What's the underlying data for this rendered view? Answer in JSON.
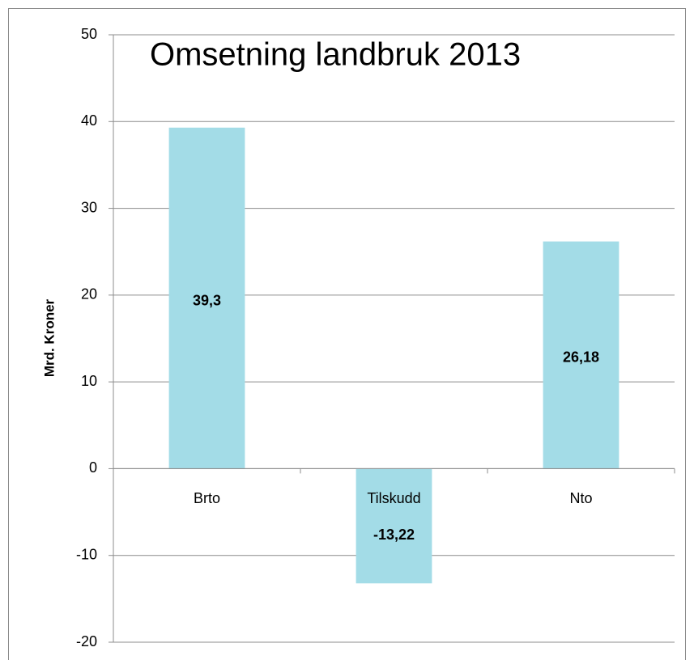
{
  "chart_data": {
    "type": "bar",
    "title": "Omsetning landbruk 2013",
    "y_label": "Mrd. Kroner",
    "categories": [
      "Brto",
      "Tilskudd",
      "Nto"
    ],
    "values": [
      39.3,
      -13.22,
      26.18
    ],
    "value_labels": [
      "39,3",
      "-13,22",
      "26,18"
    ],
    "color": "#a3dce7",
    "ylim": [
      -20,
      50
    ],
    "yticks": [
      -20,
      -10,
      0,
      10,
      20,
      30,
      40,
      50
    ],
    "grid": true
  }
}
